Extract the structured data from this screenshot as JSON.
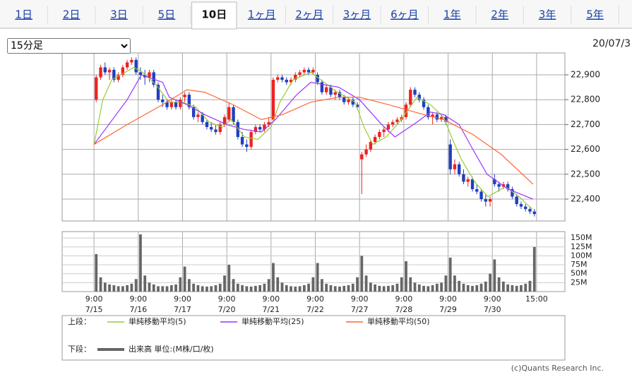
{
  "tabs": [
    "1日",
    "2日",
    "3日",
    "5日",
    "10日",
    "1ヶ月",
    "2ヶ月",
    "3ヶ月",
    "6ヶ月",
    "1年",
    "2年",
    "3年",
    "5年"
  ],
  "selected_tab": 4,
  "interval": "15分足",
  "date": "20/07/3",
  "credit": "(c)Quants Research Inc.",
  "chart_data": {
    "type": "candlestick",
    "up_color": "#ee2222",
    "down_color": "#1f3fbf",
    "xlim": [
      -7.2,
      106.4
    ],
    "xticks": [
      {
        "value": 0,
        "label": "9:00"
      },
      {
        "value": 10,
        "label": "9:00"
      },
      {
        "value": 20,
        "label": "9:00"
      },
      {
        "value": 30,
        "label": "9:00"
      },
      {
        "value": 40,
        "label": "9:00"
      },
      {
        "value": 50,
        "label": "9:00"
      },
      {
        "value": 60,
        "label": "9:00"
      },
      {
        "value": 70,
        "label": "9:00"
      },
      {
        "value": 80,
        "label": "9:00"
      },
      {
        "value": 90,
        "label": "9:00"
      },
      {
        "value": 100,
        "label": "15:00"
      }
    ],
    "xtick_dates": [
      "7/15",
      "7/16",
      "7/17",
      "7/20",
      "7/21",
      "7/22",
      "7/27",
      "7/28",
      "7/29",
      "7/30"
    ],
    "ylim": [
      22312,
      22988
    ],
    "yticks": [
      {
        "value": 22400,
        "label": "22,400"
      },
      {
        "value": 22500,
        "label": "22,500"
      },
      {
        "value": 22600,
        "label": "22,600"
      },
      {
        "value": 22700,
        "label": "22,700"
      },
      {
        "value": 22800,
        "label": "22,800"
      },
      {
        "value": 22900,
        "label": "22,900"
      }
    ],
    "grid": true,
    "legend_upper": "上段：",
    "legend_lower": "下段：",
    "candles": [
      [
        22800,
        22900,
        22790,
        22890
      ],
      [
        22890,
        22940,
        22880,
        22930
      ],
      [
        22930,
        22950,
        22900,
        22910
      ],
      [
        22910,
        22930,
        22880,
        22920
      ],
      [
        22920,
        22930,
        22870,
        22880
      ],
      [
        22880,
        22910,
        22870,
        22900
      ],
      [
        22900,
        22940,
        22890,
        22930
      ],
      [
        22930,
        22960,
        22920,
        22950
      ],
      [
        22950,
        22970,
        22940,
        22960
      ],
      [
        22960,
        22970,
        22900,
        22910
      ],
      [
        22910,
        22930,
        22880,
        22900
      ],
      [
        22900,
        22920,
        22860,
        22890
      ],
      [
        22890,
        22920,
        22870,
        22910
      ],
      [
        22910,
        22920,
        22850,
        22860
      ],
      [
        22860,
        22870,
        22790,
        22800
      ],
      [
        22800,
        22820,
        22770,
        22790
      ],
      [
        22790,
        22800,
        22760,
        22770
      ],
      [
        22770,
        22800,
        22760,
        22790
      ],
      [
        22790,
        22800,
        22760,
        22770
      ],
      [
        22770,
        22810,
        22760,
        22800
      ],
      [
        22810,
        22830,
        22790,
        22820
      ],
      [
        22820,
        22830,
        22760,
        22770
      ],
      [
        22770,
        22780,
        22720,
        22730
      ],
      [
        22730,
        22750,
        22710,
        22740
      ],
      [
        22740,
        22750,
        22700,
        22710
      ],
      [
        22710,
        22720,
        22680,
        22690
      ],
      [
        22690,
        22710,
        22670,
        22680
      ],
      [
        22680,
        22700,
        22660,
        22670
      ],
      [
        22670,
        22710,
        22660,
        22700
      ],
      [
        22700,
        22740,
        22690,
        22730
      ],
      [
        22720,
        22790,
        22710,
        22770
      ],
      [
        22770,
        22780,
        22700,
        22710
      ],
      [
        22710,
        22720,
        22640,
        22650
      ],
      [
        22650,
        22670,
        22610,
        22620
      ],
      [
        22620,
        22640,
        22590,
        22610
      ],
      [
        22610,
        22680,
        22600,
        22670
      ],
      [
        22670,
        22700,
        22660,
        22690
      ],
      [
        22690,
        22700,
        22670,
        22680
      ],
      [
        22680,
        22710,
        22670,
        22700
      ],
      [
        22700,
        22730,
        22690,
        22710
      ],
      [
        22720,
        22890,
        22710,
        22880
      ],
      [
        22880,
        22900,
        22870,
        22890
      ],
      [
        22890,
        22900,
        22870,
        22880
      ],
      [
        22880,
        22890,
        22860,
        22870
      ],
      [
        22870,
        22890,
        22860,
        22880
      ],
      [
        22880,
        22910,
        22870,
        22900
      ],
      [
        22900,
        22920,
        22890,
        22910
      ],
      [
        22910,
        22930,
        22900,
        22920
      ],
      [
        22920,
        22930,
        22900,
        22910
      ],
      [
        22910,
        22930,
        22900,
        22920
      ],
      [
        22900,
        22910,
        22860,
        22870
      ],
      [
        22870,
        22880,
        22820,
        22830
      ],
      [
        22830,
        22860,
        22820,
        22850
      ],
      [
        22850,
        22860,
        22810,
        22820
      ],
      [
        22820,
        22840,
        22800,
        22830
      ],
      [
        22830,
        22840,
        22800,
        22810
      ],
      [
        22810,
        22820,
        22780,
        22790
      ],
      [
        22790,
        22810,
        22780,
        22800
      ],
      [
        22800,
        22810,
        22770,
        22780
      ],
      [
        22780,
        22790,
        22760,
        22770
      ],
      [
        22560,
        22590,
        22420,
        22580
      ],
      [
        22580,
        22620,
        22570,
        22600
      ],
      [
        22600,
        22640,
        22590,
        22630
      ],
      [
        22630,
        22660,
        22620,
        22650
      ],
      [
        22650,
        22680,
        22640,
        22670
      ],
      [
        22670,
        22690,
        22650,
        22680
      ],
      [
        22680,
        22710,
        22670,
        22700
      ],
      [
        22700,
        22720,
        22690,
        22710
      ],
      [
        22710,
        22730,
        22700,
        22720
      ],
      [
        22720,
        22740,
        22710,
        22730
      ],
      [
        22730,
        22790,
        22720,
        22780
      ],
      [
        22780,
        22850,
        22770,
        22840
      ],
      [
        22840,
        22850,
        22810,
        22820
      ],
      [
        22820,
        22830,
        22790,
        22800
      ],
      [
        22800,
        22810,
        22760,
        22770
      ],
      [
        22770,
        22780,
        22720,
        22730
      ],
      [
        22730,
        22750,
        22700,
        22740
      ],
      [
        22740,
        22750,
        22710,
        22720
      ],
      [
        22720,
        22740,
        22710,
        22730
      ],
      [
        22730,
        22740,
        22700,
        22710
      ],
      [
        22620,
        22640,
        22500,
        22520
      ],
      [
        22520,
        22560,
        22500,
        22540
      ],
      [
        22540,
        22550,
        22490,
        22500
      ],
      [
        22500,
        22520,
        22460,
        22470
      ],
      [
        22470,
        22490,
        22450,
        22480
      ],
      [
        22480,
        22490,
        22430,
        22440
      ],
      [
        22440,
        22460,
        22420,
        22430
      ],
      [
        22430,
        22440,
        22390,
        22400
      ],
      [
        22400,
        22420,
        22370,
        22390
      ],
      [
        22390,
        22410,
        22370,
        22400
      ],
      [
        22480,
        22500,
        22450,
        22460
      ],
      [
        22460,
        22470,
        22430,
        22450
      ],
      [
        22450,
        22470,
        22440,
        22460
      ],
      [
        22460,
        22470,
        22430,
        22440
      ],
      [
        22440,
        22450,
        22400,
        22410
      ],
      [
        22410,
        22420,
        22370,
        22380
      ],
      [
        22380,
        22390,
        22360,
        22370
      ],
      [
        22370,
        22380,
        22350,
        22360
      ],
      [
        22360,
        22370,
        22340,
        22350
      ],
      [
        22350,
        22360,
        22330,
        22340
      ]
    ],
    "series": [
      {
        "name": "単純移動平均(5)",
        "color": "#99cc33",
        "x": [
          0,
          2,
          4,
          6,
          9,
          11,
          14,
          17,
          20,
          23,
          26,
          29,
          31,
          34,
          37,
          40,
          42,
          45,
          49,
          52,
          55,
          59,
          61,
          63,
          66,
          69,
          71,
          73,
          76,
          79,
          81,
          83,
          86,
          89,
          91,
          93,
          96,
          99
        ],
        "values": [
          22620,
          22800,
          22880,
          22900,
          22930,
          22910,
          22860,
          22790,
          22790,
          22770,
          22710,
          22690,
          22720,
          22650,
          22640,
          22690,
          22790,
          22880,
          22910,
          22870,
          22830,
          22790,
          22690,
          22620,
          22650,
          22710,
          22760,
          22810,
          22780,
          22730,
          22640,
          22560,
          22470,
          22410,
          22430,
          22450,
          22410,
          22360
        ]
      },
      {
        "name": "単純移動平均(25)",
        "color": "#9933ff",
        "x": [
          0,
          7.5,
          10.7,
          15.5,
          17,
          21,
          25,
          30,
          34,
          37.8,
          41,
          45.8,
          49,
          55.3,
          60,
          65,
          68,
          73,
          76,
          79,
          82.5,
          85.6,
          88.8,
          93.6,
          99.2
        ],
        "values": [
          22620,
          22800,
          22900,
          22870,
          22810,
          22780,
          22740,
          22700,
          22680,
          22670,
          22720,
          22820,
          22870,
          22850,
          22800,
          22700,
          22650,
          22710,
          22750,
          22740,
          22700,
          22600,
          22500,
          22440,
          22400
        ]
      },
      {
        "name": "単純移動平均(50)",
        "color": "#ff6633",
        "x": [
          0,
          7.5,
          15.5,
          21,
          25,
          31.4,
          37.8,
          42.6,
          49,
          55.3,
          60,
          66.5,
          74.5,
          79,
          85.6,
          92,
          99.2
        ],
        "values": [
          22620,
          22700,
          22780,
          22840,
          22830,
          22780,
          22720,
          22740,
          22790,
          22810,
          22810,
          22780,
          22740,
          22720,
          22660,
          22580,
          22460
        ]
      }
    ],
    "volume": {
      "name": "出来高 単位:(M株/口/枚)",
      "color": "#666666",
      "ylim": [
        0,
        168
      ],
      "yticks": [
        {
          "value": 25,
          "label": "25M"
        },
        {
          "value": 50,
          "label": "50M"
        },
        {
          "value": 75,
          "label": "75M"
        },
        {
          "value": 100,
          "label": "100M"
        },
        {
          "value": 125,
          "label": "125M"
        },
        {
          "value": 150,
          "label": "150M"
        }
      ],
      "values": [
        105,
        40,
        25,
        20,
        18,
        15,
        15,
        18,
        22,
        35,
        160,
        45,
        25,
        20,
        15,
        15,
        15,
        18,
        20,
        40,
        70,
        35,
        22,
        18,
        15,
        14,
        15,
        18,
        22,
        45,
        75,
        35,
        22,
        18,
        15,
        14,
        16,
        18,
        22,
        35,
        80,
        40,
        25,
        18,
        15,
        14,
        15,
        18,
        22,
        40,
        80,
        35,
        22,
        18,
        15,
        14,
        16,
        18,
        22,
        40,
        100,
        45,
        25,
        20,
        16,
        15,
        16,
        18,
        22,
        40,
        85,
        40,
        25,
        20,
        16,
        15,
        18,
        22,
        25,
        45,
        95,
        45,
        30,
        22,
        18,
        16,
        18,
        22,
        28,
        50,
        90,
        40,
        28,
        20,
        18,
        16,
        18,
        22,
        30,
        125
      ]
    }
  }
}
